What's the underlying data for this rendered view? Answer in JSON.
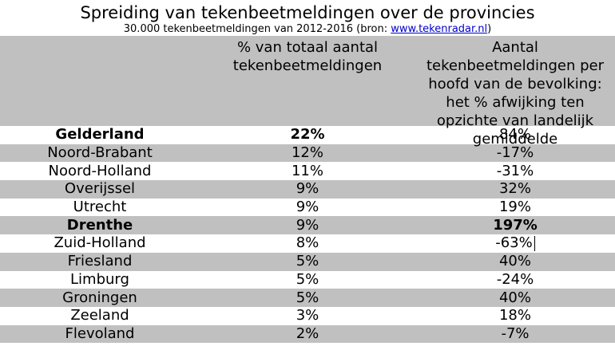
{
  "title": "Spreiding van tekenbeetmeldingen over de provincies",
  "subtitle_prefix": "30.000 tekenbeetmeldingen van 2012-2016 (bron: ",
  "subtitle_link": "www.tekenradar.nl",
  "subtitle_suffix": ")",
  "headers": {
    "province": "",
    "percentage": "% van totaal aantal tekenbeetmeldingen",
    "deviation": "Aantal tekenbeetmeldingen per hoofd van de bevolking: het % afwijking ten opzichte van landelijk gemiddelde"
  },
  "rows": [
    {
      "province": "Gelderland",
      "percentage": "22%",
      "deviation": "84%"
    },
    {
      "province": "Noord-Brabant",
      "percentage": "12%",
      "deviation": "-17%"
    },
    {
      "province": "Noord-Holland",
      "percentage": "11%",
      "deviation": "-31%"
    },
    {
      "province": "Overijssel",
      "percentage": "9%",
      "deviation": "32%"
    },
    {
      "province": "Utrecht",
      "percentage": "9%",
      "deviation": "19%"
    },
    {
      "province": "Drenthe",
      "percentage": "9%",
      "deviation": "197%"
    },
    {
      "province": "Zuid-Holland",
      "percentage": "8%",
      "deviation": "-63%"
    },
    {
      "province": "Friesland",
      "percentage": "5%",
      "deviation": "40%"
    },
    {
      "province": "Limburg",
      "percentage": "5%",
      "deviation": "-24%"
    },
    {
      "province": "Groningen",
      "percentage": "5%",
      "deviation": "40%"
    },
    {
      "province": "Zeeland",
      "percentage": "3%",
      "deviation": "18%"
    },
    {
      "province": "Flevoland",
      "percentage": "2%",
      "deviation": "-7%"
    }
  ]
}
